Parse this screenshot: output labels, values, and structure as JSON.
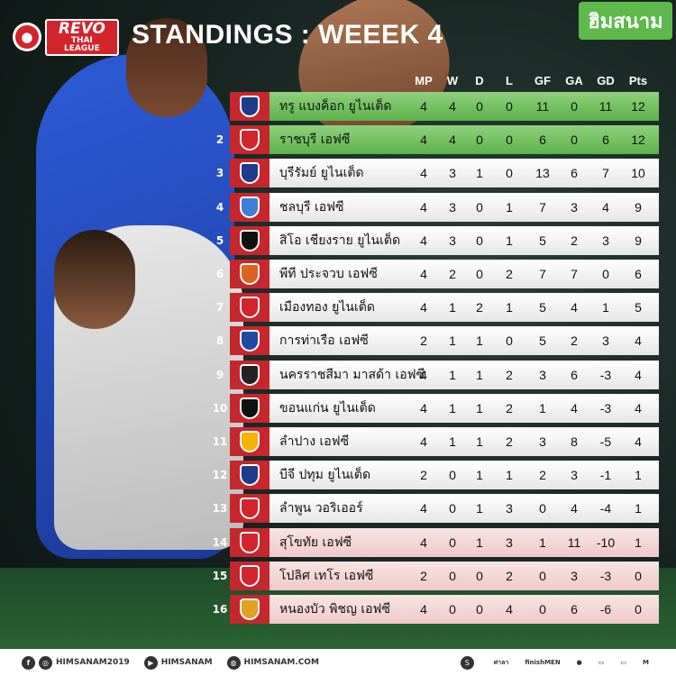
{
  "header": {
    "logo_brand": "REVO",
    "logo_league": "THAI LEAGUE",
    "title": "STANDINGS : WEEEK 4",
    "site_brand": "ฮิมสนาม"
  },
  "columns": [
    "MP",
    "W",
    "D",
    "L",
    "GF",
    "GA",
    "GD",
    "Pts"
  ],
  "rows": [
    {
      "rank": "",
      "team": "ทรู แบงค็อก ยูไนเต็ด",
      "mp": "4",
      "w": "4",
      "d": "0",
      "l": "0",
      "gf": "11",
      "ga": "0",
      "gd": "11",
      "pts": "12"
    },
    {
      "rank": "2",
      "team": "ราชบุรี เอฟซี",
      "mp": "4",
      "w": "4",
      "d": "0",
      "l": "0",
      "gf": "6",
      "ga": "0",
      "gd": "6",
      "pts": "12"
    },
    {
      "rank": "3",
      "team": "บุรีรัมย์ ยูไนเต็ด",
      "mp": "4",
      "w": "3",
      "d": "1",
      "l": "0",
      "gf": "13",
      "ga": "6",
      "gd": "7",
      "pts": "10"
    },
    {
      "rank": "4",
      "team": "ชลบุรี เอฟซี",
      "mp": "4",
      "w": "3",
      "d": "0",
      "l": "1",
      "gf": "7",
      "ga": "3",
      "gd": "4",
      "pts": "9"
    },
    {
      "rank": "5",
      "team": "สิโอ เชียงราย ยูไนเต็ด",
      "mp": "4",
      "w": "3",
      "d": "0",
      "l": "1",
      "gf": "5",
      "ga": "2",
      "gd": "3",
      "pts": "9"
    },
    {
      "rank": "6",
      "team": "พีที ประจวบ เอฟซี",
      "mp": "4",
      "w": "2",
      "d": "0",
      "l": "2",
      "gf": "7",
      "ga": "7",
      "gd": "0",
      "pts": "6"
    },
    {
      "rank": "7",
      "team": "เมืองทอง ยูไนเต็ด",
      "mp": "4",
      "w": "1",
      "d": "2",
      "l": "1",
      "gf": "5",
      "ga": "4",
      "gd": "1",
      "pts": "5"
    },
    {
      "rank": "8",
      "team": "การท่าเรือ เอฟซี",
      "mp": "2",
      "w": "1",
      "d": "1",
      "l": "0",
      "gf": "5",
      "ga": "2",
      "gd": "3",
      "pts": "4"
    },
    {
      "rank": "9",
      "team": "นครราชสีมา มาสด้า เอฟซี",
      "mp": "4",
      "w": "1",
      "d": "1",
      "l": "2",
      "gf": "3",
      "ga": "6",
      "gd": "-3",
      "pts": "4"
    },
    {
      "rank": "10",
      "team": "ขอนแก่น ยูไนเต็ด",
      "mp": "4",
      "w": "1",
      "d": "1",
      "l": "2",
      "gf": "1",
      "ga": "4",
      "gd": "-3",
      "pts": "4"
    },
    {
      "rank": "11",
      "team": "ลำปาง เอฟซี",
      "mp": "4",
      "w": "1",
      "d": "1",
      "l": "2",
      "gf": "3",
      "ga": "8",
      "gd": "-5",
      "pts": "4"
    },
    {
      "rank": "12",
      "team": "บีจี ปทุม ยูไนเต็ด",
      "mp": "2",
      "w": "0",
      "d": "1",
      "l": "1",
      "gf": "2",
      "ga": "3",
      "gd": "-1",
      "pts": "1"
    },
    {
      "rank": "13",
      "team": "ลำพูน วอริเออร์",
      "mp": "4",
      "w": "0",
      "d": "1",
      "l": "3",
      "gf": "0",
      "ga": "4",
      "gd": "-4",
      "pts": "1"
    },
    {
      "rank": "14",
      "team": "สุโขทัย เอฟซี",
      "mp": "4",
      "w": "0",
      "d": "1",
      "l": "3",
      "gf": "1",
      "ga": "11",
      "gd": "-10",
      "pts": "1"
    },
    {
      "rank": "15",
      "team": "โปลิศ เทโร เอฟซี",
      "mp": "2",
      "w": "0",
      "d": "0",
      "l": "2",
      "gf": "0",
      "ga": "3",
      "gd": "-3",
      "pts": "0"
    },
    {
      "rank": "16",
      "team": "หนองบัว พิชญ เอฟซี",
      "mp": "4",
      "w": "0",
      "d": "0",
      "l": "4",
      "gf": "0",
      "ga": "6",
      "gd": "-6",
      "pts": "0"
    }
  ],
  "footer": {
    "handle_1": "HIMSANAM2019",
    "handle_2": "HIMSANAM",
    "website": "HIMSANAM.COM",
    "sponsors": [
      "ศาลา",
      "finishMEN",
      "",
      "",
      "",
      ""
    ]
  },
  "colors": {
    "accent_red": "#c6262d",
    "top_green": "#5cb34a",
    "bottom_pink": "#efc9c9"
  }
}
